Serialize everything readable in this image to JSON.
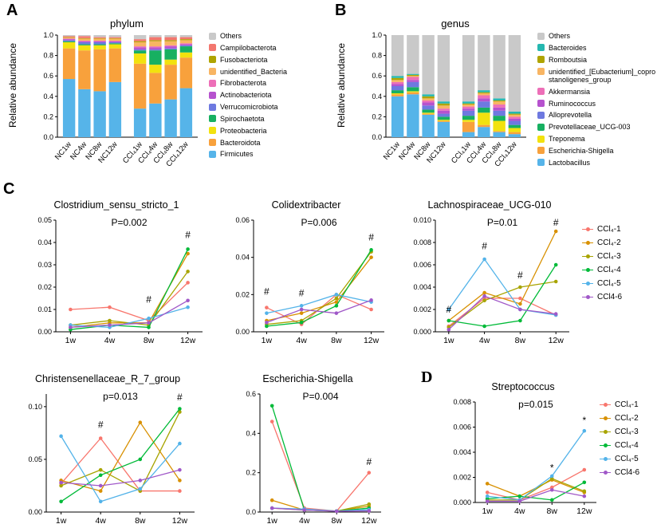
{
  "panels": {
    "A": {
      "letter": "A"
    },
    "B": {
      "letter": "B"
    },
    "C": {
      "letter": "C"
    },
    "D": {
      "letter": "D"
    }
  },
  "series_legend": [
    {
      "label": "CCl₄-1",
      "color": "#F8766D"
    },
    {
      "label": "CCl₄-2",
      "color": "#D89000"
    },
    {
      "label": "CCl₄-3",
      "color": "#A8A400"
    },
    {
      "label": "CCl₄-4",
      "color": "#00BA38"
    },
    {
      "label": "CCl₄-5",
      "color": "#53B3E9"
    },
    {
      "label": "CCl4-6",
      "color": "#A058C8"
    }
  ],
  "chart_data": [
    {
      "id": "phylum",
      "type": "stacked_bar",
      "title": "phylum",
      "ylabel": "Relative abundance",
      "ylim": [
        0,
        1.0
      ],
      "yticks": [
        0,
        0.2,
        0.4,
        0.6,
        0.8,
        1.0
      ],
      "ytick_labels": [
        "0.0",
        "0.2",
        "0.4",
        "0.6",
        "0.8",
        "1.0"
      ],
      "categories": [
        "NC1w",
        "NC4w",
        "NC8w",
        "NC12w",
        "CCl₄1w",
        "CCl₄4w",
        "CCl₄8w",
        "CCl₄12w"
      ],
      "gap_after_index": 3,
      "series": [
        {
          "name": "Firmicutes",
          "color": "#56B4E9",
          "values": [
            0.57,
            0.47,
            0.45,
            0.54,
            0.28,
            0.33,
            0.37,
            0.48
          ]
        },
        {
          "name": "Bacteroidota",
          "color": "#F8A13C",
          "values": [
            0.3,
            0.38,
            0.41,
            0.33,
            0.44,
            0.3,
            0.34,
            0.3
          ]
        },
        {
          "name": "Proteobacteria",
          "color": "#F2E20E",
          "values": [
            0.06,
            0.05,
            0.04,
            0.04,
            0.1,
            0.08,
            0.05,
            0.05
          ]
        },
        {
          "name": "Spirochaetota",
          "color": "#17B061",
          "values": [
            0.01,
            0.01,
            0.01,
            0.01,
            0.03,
            0.14,
            0.1,
            0.06
          ]
        },
        {
          "name": "Verrucomicrobiota",
          "color": "#6E79E0",
          "values": [
            0.01,
            0.02,
            0.02,
            0.01,
            0.01,
            0.01,
            0.01,
            0.01
          ]
        },
        {
          "name": "Actinobacteriota",
          "color": "#B652CE",
          "values": [
            0.01,
            0.01,
            0.01,
            0.01,
            0.02,
            0.02,
            0.02,
            0.01
          ]
        },
        {
          "name": "Fibrobacterota",
          "color": "#ED6FB8",
          "values": [
            0.005,
            0.005,
            0.005,
            0.005,
            0.01,
            0.01,
            0.01,
            0.01
          ]
        },
        {
          "name": "unidentified_Bacteria",
          "color": "#F8B563",
          "values": [
            0.01,
            0.02,
            0.02,
            0.02,
            0.04,
            0.05,
            0.04,
            0.03
          ]
        },
        {
          "name": "Fusobacteriota",
          "color": "#AFA400",
          "values": [
            0.005,
            0.005,
            0.005,
            0.005,
            0.01,
            0.01,
            0.01,
            0.01
          ]
        },
        {
          "name": "Campilobacterota",
          "color": "#F3776F",
          "values": [
            0.01,
            0.02,
            0.01,
            0.01,
            0.02,
            0.03,
            0.03,
            0.02
          ]
        },
        {
          "name": "Others",
          "color": "#C9C9C9",
          "values": [
            0.01,
            0.01,
            0.02,
            0.02,
            0.04,
            0.02,
            0.02,
            0.02
          ]
        }
      ]
    },
    {
      "id": "genus",
      "type": "stacked_bar",
      "title": "genus",
      "ylabel": "Relative abundance",
      "ylim": [
        0,
        1.0
      ],
      "yticks": [
        0,
        0.2,
        0.4,
        0.6,
        0.8,
        1.0
      ],
      "ytick_labels": [
        "0.0",
        "0.2",
        "0.4",
        "0.6",
        "0.8",
        "1.0"
      ],
      "categories": [
        "NC1w",
        "NC4w",
        "NC8w",
        "NC12w",
        "CCl₄1w",
        "CCl₄4w",
        "CCl₄8w",
        "CCl₄12w"
      ],
      "gap_after_index": 3,
      "series": [
        {
          "name": "Lactobacillus",
          "color": "#56B4E9",
          "values": [
            0.4,
            0.42,
            0.22,
            0.15,
            0.05,
            0.1,
            0.05,
            0.03
          ]
        },
        {
          "name": "Escherichia-Shigella",
          "color": "#F8A13C",
          "values": [
            0.02,
            0.02,
            0.01,
            0.01,
            0.1,
            0.02,
            0.01,
            0.02
          ]
        },
        {
          "name": "Treponema",
          "color": "#F2E20E",
          "values": [
            0.01,
            0.01,
            0.01,
            0.01,
            0.02,
            0.12,
            0.1,
            0.04
          ]
        },
        {
          "name": "Prevotellaceae_UCG-003",
          "color": "#17B061",
          "values": [
            0.03,
            0.04,
            0.03,
            0.03,
            0.04,
            0.05,
            0.05,
            0.03
          ]
        },
        {
          "name": "Alloprevotella",
          "color": "#6E79E0",
          "values": [
            0.04,
            0.05,
            0.04,
            0.03,
            0.05,
            0.06,
            0.05,
            0.04
          ]
        },
        {
          "name": "Ruminococcus",
          "color": "#B652CE",
          "values": [
            0.02,
            0.02,
            0.03,
            0.03,
            0.02,
            0.03,
            0.03,
            0.02
          ]
        },
        {
          "name": "Akkermansia",
          "color": "#ED6FB8",
          "values": [
            0.02,
            0.03,
            0.02,
            0.02,
            0.02,
            0.03,
            0.03,
            0.02
          ]
        },
        {
          "name": "unidentified_[Eubacterium]_coprostanoligenes_group",
          "color": "#F8B563",
          "values": [
            0.02,
            0.01,
            0.02,
            0.03,
            0.02,
            0.02,
            0.03,
            0.02
          ]
        },
        {
          "name": "Romboutsia",
          "color": "#AFA400",
          "values": [
            0.02,
            0.01,
            0.02,
            0.02,
            0.01,
            0.01,
            0.01,
            0.01
          ]
        },
        {
          "name": "Bacteroides",
          "color": "#25B8B0",
          "values": [
            0.02,
            0.01,
            0.02,
            0.02,
            0.02,
            0.02,
            0.02,
            0.02
          ]
        },
        {
          "name": "Others",
          "color": "#C9C9C9",
          "values": [
            0.4,
            0.38,
            0.58,
            0.65,
            0.65,
            0.54,
            0.62,
            0.75
          ]
        }
      ]
    },
    {
      "id": "clostridium",
      "type": "line",
      "title": "Clostridium_sensu_stricto_1",
      "pvalue": "P=0.002",
      "ylim": [
        0,
        0.05
      ],
      "yticks": [
        0,
        0.01,
        0.02,
        0.03,
        0.04,
        0.05
      ],
      "ytick_labels": [
        "0.00",
        "0.01",
        "0.02",
        "0.03",
        "0.04",
        "0.05"
      ],
      "categories": [
        "1w",
        "4w",
        "8w",
        "12w"
      ],
      "series_values": [
        [
          0.01,
          0.011,
          0.005,
          0.022
        ],
        [
          0.002,
          0.004,
          0.004,
          0.035
        ],
        [
          0.003,
          0.005,
          0.003,
          0.027
        ],
        [
          0.001,
          0.003,
          0.002,
          0.037
        ],
        [
          0.003,
          0.002,
          0.006,
          0.011
        ],
        [
          0.002,
          0.003,
          0.004,
          0.014
        ]
      ],
      "annotations": [
        {
          "cat": 2,
          "text": "#",
          "y": 0.013
        },
        {
          "cat": 3,
          "text": "#",
          "y": 0.042
        }
      ]
    },
    {
      "id": "colidextribacter",
      "type": "line",
      "title": "Colidextribacter",
      "pvalue": "P=0.006",
      "ylim": [
        0,
        0.06
      ],
      "yticks": [
        0,
        0.02,
        0.04,
        0.06
      ],
      "ytick_labels": [
        "0.00",
        "0.02",
        "0.04",
        "0.06"
      ],
      "categories": [
        "1w",
        "4w",
        "8w",
        "12w"
      ],
      "series_values": [
        [
          0.013,
          0.004,
          0.02,
          0.012
        ],
        [
          0.006,
          0.01,
          0.016,
          0.04
        ],
        [
          0.004,
          0.006,
          0.018,
          0.043
        ],
        [
          0.003,
          0.005,
          0.014,
          0.044
        ],
        [
          0.01,
          0.014,
          0.02,
          0.016
        ],
        [
          0.005,
          0.012,
          0.01,
          0.017
        ]
      ],
      "annotations": [
        {
          "cat": 0,
          "text": "#",
          "y": 0.02
        },
        {
          "cat": 1,
          "text": "#",
          "y": 0.019
        },
        {
          "cat": 3,
          "text": "#",
          "y": 0.049
        }
      ]
    },
    {
      "id": "lachnospiraceae",
      "type": "line",
      "title": "Lachnospiraceae_UCG-010",
      "pvalue": "P=0.01",
      "ylim": [
        0,
        0.01
      ],
      "yticks": [
        0,
        0.002,
        0.004,
        0.006,
        0.008,
        0.01
      ],
      "ytick_labels": [
        "0.000",
        "0.002",
        "0.004",
        "0.006",
        "0.008",
        "0.010"
      ],
      "categories": [
        "1w",
        "4w",
        "8w",
        "12w"
      ],
      "series_values": [
        [
          0.0005,
          0.003,
          0.003,
          0.0015
        ],
        [
          0.001,
          0.0035,
          0.0025,
          0.009
        ],
        [
          0.0004,
          0.0028,
          0.004,
          0.0045
        ],
        [
          0.001,
          0.0005,
          0.001,
          0.006
        ],
        [
          0.002,
          0.0065,
          0.002,
          0.0015
        ],
        [
          0.0002,
          0.0032,
          0.002,
          0.0016
        ]
      ],
      "annotations": [
        {
          "cat": 0,
          "text": "#",
          "y": 0.0017
        },
        {
          "cat": 1,
          "text": "#",
          "y": 0.0074
        },
        {
          "cat": 2,
          "text": "#",
          "y": 0.0048
        },
        {
          "cat": 3,
          "text": "#",
          "y": 0.0095
        }
      ]
    },
    {
      "id": "christensenellaceae",
      "type": "line",
      "title": "Christensenellaceae_R_7_group",
      "pvalue": "p=0.013",
      "ylim": [
        0,
        0.112
      ],
      "yticks": [
        0,
        0.05,
        0.1
      ],
      "ytick_labels": [
        "0.00",
        "0.05",
        "0.10"
      ],
      "categories": [
        "1w",
        "4w",
        "8w",
        "12w"
      ],
      "series_values": [
        [
          0.027,
          0.07,
          0.02,
          0.02
        ],
        [
          0.03,
          0.02,
          0.085,
          0.03
        ],
        [
          0.025,
          0.04,
          0.02,
          0.095
        ],
        [
          0.01,
          0.035,
          0.05,
          0.098
        ],
        [
          0.072,
          0.01,
          0.022,
          0.065
        ],
        [
          0.028,
          0.025,
          0.03,
          0.04
        ]
      ],
      "annotations": [
        {
          "cat": 1,
          "text": "#",
          "y": 0.08
        },
        {
          "cat": 3,
          "text": "#",
          "y": 0.106
        }
      ]
    },
    {
      "id": "escherichia",
      "type": "line",
      "title": "Escherichia-Shigella",
      "pvalue": "P=0.004",
      "ylim": [
        0,
        0.6
      ],
      "yticks": [
        0,
        0.2,
        0.4,
        0.6
      ],
      "ytick_labels": [
        "0.0",
        "0.2",
        "0.4",
        "0.6"
      ],
      "categories": [
        "1w",
        "4w",
        "8w",
        "12w"
      ],
      "series_values": [
        [
          0.46,
          0.02,
          0.005,
          0.2
        ],
        [
          0.06,
          0.01,
          0.005,
          0.03
        ],
        [
          0.02,
          0.01,
          0.005,
          0.04
        ],
        [
          0.54,
          0.01,
          0.005,
          0.02
        ],
        [
          0.02,
          0.015,
          0.005,
          0.012
        ],
        [
          0.02,
          0.01,
          0.004,
          0.006
        ]
      ],
      "annotations": [
        {
          "cat": 3,
          "text": "#",
          "y": 0.24
        }
      ]
    },
    {
      "id": "streptococcus",
      "type": "line",
      "title": "Streptococcus",
      "pvalue": "p=0.015",
      "ylim": [
        0,
        0.008
      ],
      "yticks": [
        0,
        0.002,
        0.004,
        0.006,
        0.008
      ],
      "ytick_labels": [
        "0.000",
        "0.002",
        "0.004",
        "0.006",
        "0.008"
      ],
      "categories": [
        "1w",
        "4w",
        "8w",
        "12w"
      ],
      "series_values": [
        [
          0.0008,
          0.0002,
          0.0012,
          0.0026
        ],
        [
          0.0015,
          0.0005,
          0.0018,
          0.0008
        ],
        [
          0.0002,
          0.0002,
          0.0019,
          0.0009
        ],
        [
          0.0003,
          0.0005,
          0.0002,
          0.0016
        ],
        [
          0.0005,
          0.0002,
          0.0021,
          0.0057
        ],
        [
          0.0001,
          0.0001,
          0.001,
          0.0005
        ]
      ],
      "annotations": [
        {
          "cat": 2,
          "text": "*",
          "y": 0.0025
        },
        {
          "cat": 3,
          "text": "*",
          "y": 0.0063
        }
      ]
    }
  ]
}
